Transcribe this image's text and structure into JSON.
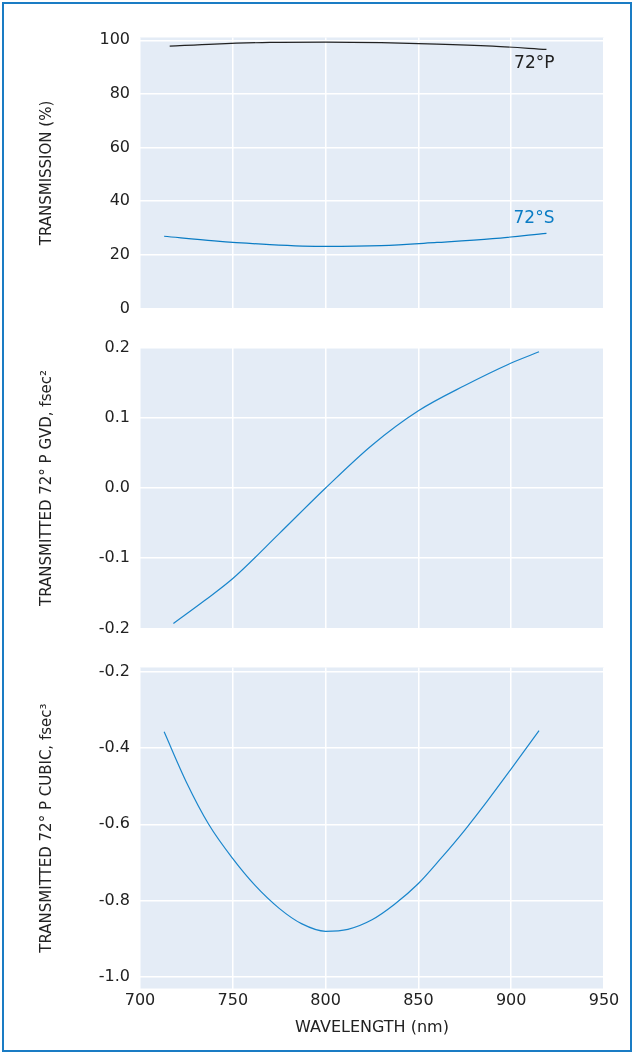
{
  "chart_data": [
    {
      "type": "line",
      "ylabel": "TRANSMISSION (%)",
      "xlim": [
        700,
        950
      ],
      "xticks": [
        700,
        750,
        800,
        850,
        900,
        950
      ],
      "ylim": [
        0,
        101
      ],
      "yticks": [
        0,
        20,
        40,
        60,
        80,
        100
      ],
      "grid": true,
      "legend": false,
      "tick_labels": "y",
      "marker": "none",
      "series": [
        {
          "name": "72°P",
          "color": "#222222",
          "x": [
            716,
            740,
            770,
            800,
            830,
            860,
            890,
            919
          ],
          "values": [
            97.8,
            98.6,
            99.2,
            99.3,
            99.1,
            98.6,
            97.8,
            96.6
          ]
        },
        {
          "name": "72°S",
          "color": "#0a7cc4",
          "x": [
            713,
            740,
            770,
            800,
            830,
            860,
            890,
            919
          ],
          "values": [
            26.9,
            25.2,
            23.8,
            23.1,
            23.4,
            24.6,
            26.0,
            28.0
          ]
        }
      ]
    },
    {
      "type": "line",
      "ylabel": "TRANSMITTED 72° P GVD, fsec²",
      "xlim": [
        700,
        950
      ],
      "xticks": [
        700,
        750,
        800,
        850,
        900,
        950
      ],
      "ylim": [
        -0.2,
        0.2
      ],
      "yticks": [
        0.2,
        0.1,
        {
          "value": 0,
          "label": "0.0"
        },
        -0.1,
        -0.2
      ],
      "grid": true,
      "legend": false,
      "tick_labels": "y",
      "marker": "none",
      "series": [
        {
          "color": "#1a86cc",
          "x": [
            718,
            735,
            750,
            775,
            800,
            825,
            850,
            875,
            900,
            915
          ],
          "values": [
            -0.193,
            -0.16,
            -0.129,
            -0.065,
            0.0,
            0.061,
            0.11,
            0.146,
            0.178,
            0.194
          ]
        }
      ]
    },
    {
      "type": "line",
      "ylabel": "TRANSMITTED 72° P CUBIC, fsec³",
      "xlabel": "WAVELENGTH (nm)",
      "xlim": [
        700,
        950
      ],
      "xticks": [
        700,
        750,
        800,
        850,
        900,
        950
      ],
      "ylim": [
        -1.03,
        -0.19
      ],
      "yticks": [
        -0.2,
        -0.4,
        -0.6,
        -0.8,
        {
          "value": -1,
          "label": "-1.0"
        }
      ],
      "grid": true,
      "legend": false,
      "marker": "none",
      "series": [
        {
          "color": "#1a86cc",
          "x": [
            713,
            725,
            737,
            750,
            762,
            775,
            787,
            800,
            812,
            825,
            837,
            850,
            862,
            875,
            887,
            900,
            915
          ],
          "values": [
            -0.358,
            -0.49,
            -0.6,
            -0.69,
            -0.76,
            -0.82,
            -0.86,
            -0.88,
            -0.875,
            -0.85,
            -0.81,
            -0.755,
            -0.69,
            -0.615,
            -0.54,
            -0.455,
            -0.355
          ]
        }
      ]
    }
  ]
}
